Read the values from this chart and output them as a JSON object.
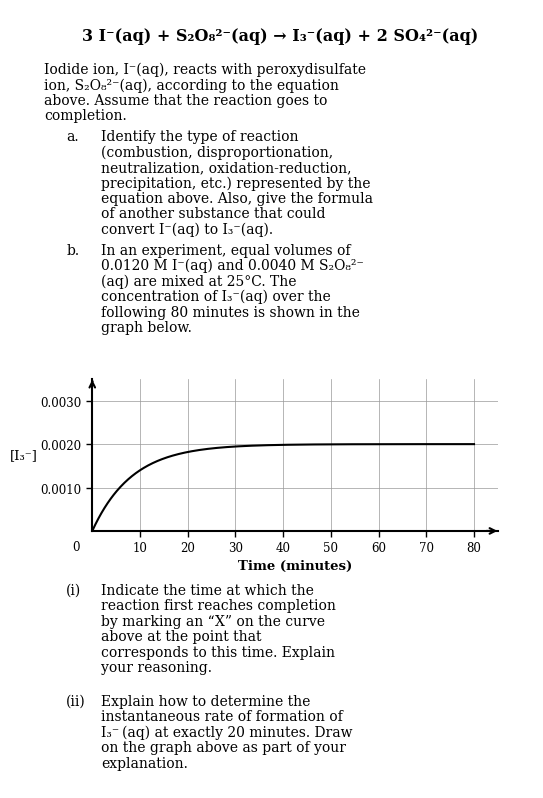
{
  "background_color": "#ffffff",
  "text_color": "#000000",
  "curve_color": "#000000",
  "grid_color": "#999999",
  "graph_yticks": [
    0.001,
    0.002,
    0.003
  ],
  "graph_ytick_labels": [
    "0.0010",
    "0.0020",
    "0.0030"
  ],
  "graph_xticks": [
    10,
    20,
    30,
    40,
    50,
    60,
    70,
    80
  ],
  "graph_xlim": [
    0,
    85
  ],
  "graph_ylim": [
    0,
    0.0035
  ],
  "curve_max": 0.002,
  "curve_k": 0.12,
  "graph_xlabel": "Time (minutes)",
  "graph_ylabel": "[I₃⁻]"
}
